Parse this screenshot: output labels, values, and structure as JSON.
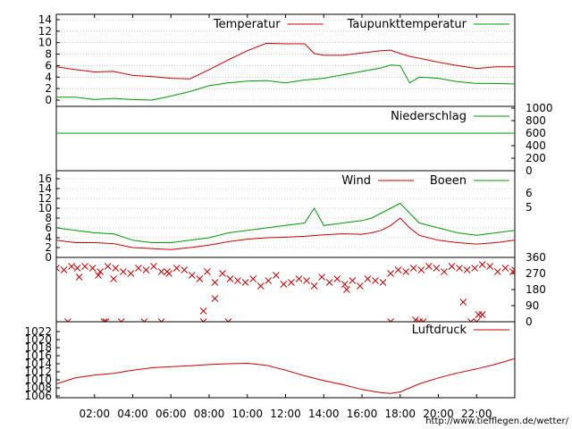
{
  "credit": "http://www.tiefflegen.de/wetter/",
  "colors": {
    "red": "#cc0000",
    "green": "#009900",
    "frame": "#000000",
    "grid": "#a0a0a0"
  },
  "x_ticks": [
    "02:00",
    "04:00",
    "06:00",
    "08:00",
    "10:00",
    "12:00",
    "14:00",
    "16:00",
    "18:00",
    "20:00",
    "22:00"
  ],
  "chart_data": [
    {
      "type": "line",
      "panel": "temperature",
      "x_unit": "hours",
      "xlim": [
        0,
        24
      ],
      "ylim": [
        -1,
        15
      ],
      "y_ticks": [
        "14",
        "12",
        "10",
        "8",
        "6",
        "4",
        "2",
        "0"
      ],
      "grid": "horizontal dotted",
      "legend": "top-right",
      "series": [
        {
          "name": "Temperatur",
          "color": "red",
          "x": [
            0,
            1,
            2,
            3,
            4,
            5,
            6,
            7,
            8,
            9,
            10,
            11,
            12,
            13,
            13.5,
            14,
            15,
            16,
            17,
            17.5,
            18,
            18.5,
            19,
            20,
            21,
            22,
            23,
            24
          ],
          "y": [
            5.8,
            5.3,
            4.9,
            5.0,
            4.3,
            4.1,
            3.8,
            3.7,
            5.3,
            7.0,
            8.6,
            9.9,
            9.8,
            9.8,
            8.1,
            7.8,
            7.8,
            8.2,
            8.6,
            8.7,
            8.1,
            7.6,
            7.3,
            6.6,
            6.0,
            5.5,
            5.8,
            5.8
          ]
        },
        {
          "name": "Taupunkttemperatur",
          "color": "green",
          "x": [
            0,
            1,
            2,
            3,
            4,
            5,
            6,
            7,
            8,
            9,
            10,
            11,
            12,
            13,
            14,
            15,
            16,
            17,
            17.5,
            18,
            18.5,
            19,
            20,
            21,
            22,
            23,
            24
          ],
          "y": [
            0.5,
            0.5,
            0.1,
            0.3,
            0.1,
            0.0,
            0.7,
            1.5,
            2.5,
            3.0,
            3.3,
            3.4,
            3.0,
            3.5,
            3.8,
            4.4,
            5.0,
            5.6,
            6.1,
            6.0,
            3.0,
            4.0,
            3.8,
            3.2,
            2.9,
            2.9,
            2.8
          ]
        }
      ]
    },
    {
      "type": "line",
      "panel": "precipitation",
      "x_unit": "hours",
      "xlim": [
        0,
        24
      ],
      "ylim": [
        0,
        1000
      ],
      "y_ticks": [
        "1000",
        "800",
        "600",
        "400",
        "200",
        "0"
      ],
      "legend": "top-right",
      "series": [
        {
          "name": "Niederschlag",
          "color": "green",
          "x": [
            0,
            24
          ],
          "y": [
            600,
            600
          ]
        }
      ]
    },
    {
      "type": "line",
      "panel": "wind",
      "x_unit": "hours",
      "xlim": [
        0,
        24
      ],
      "ylim": [
        0,
        16
      ],
      "y_ticks": [
        "16",
        "14",
        "12",
        "10",
        "8",
        "6",
        "4",
        "2",
        "0"
      ],
      "right_labels": [
        "6",
        "5"
      ],
      "grid": "horizontal dotted",
      "legend": "top-right",
      "series": [
        {
          "name": "Wind",
          "color": "red",
          "x": [
            0,
            1,
            2,
            3,
            4,
            5,
            6,
            7,
            8,
            9,
            10,
            11,
            12,
            13,
            14,
            15,
            16,
            16.5,
            17,
            17.5,
            18,
            18.5,
            19,
            20,
            21,
            22,
            23,
            24
          ],
          "y": [
            3.5,
            3.0,
            3.0,
            2.8,
            2.0,
            1.8,
            1.6,
            2.0,
            2.5,
            3.2,
            3.7,
            4.0,
            4.1,
            4.3,
            4.6,
            4.8,
            4.7,
            5.0,
            5.5,
            6.5,
            8.0,
            6.0,
            4.5,
            3.5,
            3.0,
            2.7,
            3.0,
            3.5
          ]
        },
        {
          "name": "Boeen",
          "color": "green",
          "x": [
            0,
            1,
            2,
            3,
            4,
            5,
            6,
            7,
            8,
            9,
            10,
            11,
            12,
            13,
            13.5,
            14,
            15,
            16,
            16.5,
            17,
            17.5,
            18,
            18.5,
            19,
            20,
            21,
            22,
            23,
            24
          ],
          "y": [
            6.0,
            5.5,
            5.0,
            4.8,
            3.5,
            3.0,
            3.0,
            3.5,
            4.0,
            5.0,
            5.5,
            6.0,
            6.5,
            7.0,
            10.0,
            6.5,
            7.0,
            7.5,
            8.0,
            9.0,
            10.0,
            11.0,
            9.0,
            7.0,
            6.0,
            5.0,
            4.5,
            5.0,
            5.5
          ]
        }
      ]
    },
    {
      "type": "scatter",
      "panel": "wind-direction",
      "x_unit": "hours",
      "xlim": [
        0,
        24
      ],
      "ylim": [
        0,
        360
      ],
      "y_ticks": [
        "360",
        "270",
        "180",
        "90",
        "0"
      ],
      "marker": "x",
      "series": [
        {
          "color": "red",
          "x": [
            0,
            0.4,
            0.8,
            1.1,
            1.5,
            1.9,
            2.3,
            2.7,
            3.1,
            3.5,
            3.9,
            4.3,
            4.7,
            5.1,
            5.5,
            5.9,
            6.3,
            6.7,
            7.1,
            7.5,
            7.9,
            8.3,
            8.7,
            9.1,
            9.5,
            9.9,
            10.3,
            10.7,
            11.1,
            11.5,
            11.9,
            12.3,
            12.7,
            13.1,
            13.5,
            13.9,
            14.3,
            14.7,
            15.1,
            15.5,
            15.9,
            16.3,
            16.7,
            17.1,
            17.5,
            17.9,
            18.3,
            18.7,
            19.1,
            19.5,
            19.9,
            20.3,
            20.7,
            21.1,
            21.5,
            21.9,
            22.3,
            22.7,
            23.1,
            23.5,
            23.9,
            0.6,
            2.5,
            2.6,
            3.4,
            4.6,
            5.5,
            7.7,
            9.0,
            17.5,
            19.0,
            19.2,
            21.7,
            22.0,
            1.2,
            2.2,
            3.0,
            5.8,
            7.7,
            8.3,
            15.2,
            21.3,
            22.1,
            22.3,
            18.8,
            24.0
          ],
          "y": [
            300,
            290,
            310,
            300,
            310,
            300,
            280,
            310,
            300,
            280,
            270,
            300,
            290,
            310,
            280,
            270,
            300,
            290,
            260,
            240,
            280,
            220,
            270,
            240,
            230,
            220,
            240,
            200,
            230,
            260,
            210,
            220,
            240,
            230,
            200,
            250,
            220,
            240,
            210,
            230,
            200,
            240,
            230,
            220,
            270,
            290,
            280,
            300,
            290,
            310,
            300,
            280,
            310,
            300,
            290,
            300,
            320,
            310,
            280,
            300,
            280,
            0,
            0,
            0,
            0,
            0,
            0,
            0,
            0,
            0,
            0,
            0,
            0,
            0,
            250,
            260,
            240,
            280,
            60,
            130,
            180,
            110,
            40,
            40,
            10,
            290
          ]
        }
      ]
    },
    {
      "type": "line",
      "panel": "pressure",
      "x_unit": "hours",
      "xlim": [
        0,
        24
      ],
      "ylim": [
        1006,
        1022
      ],
      "y_ticks": [
        "1022",
        "1020",
        "1018",
        "1016",
        "1014",
        "1012",
        "1010",
        "1008",
        "1006"
      ],
      "legend": "top-right",
      "series": [
        {
          "name": "Luftdruck",
          "color": "red",
          "x": [
            0,
            1,
            2,
            3,
            4,
            5,
            6,
            7,
            8,
            9,
            10,
            11,
            12,
            13,
            14,
            15,
            16,
            17,
            17.5,
            18,
            19,
            20,
            21,
            22,
            23,
            24
          ],
          "y": [
            1009.0,
            1010.5,
            1011.2,
            1011.6,
            1012.4,
            1013.0,
            1013.3,
            1013.5,
            1013.8,
            1014.0,
            1014.1,
            1013.6,
            1012.4,
            1011.0,
            1009.8,
            1008.8,
            1007.6,
            1006.8,
            1006.6,
            1007.0,
            1009.0,
            1010.5,
            1011.7,
            1012.7,
            1013.9,
            1015.3
          ]
        }
      ]
    }
  ]
}
